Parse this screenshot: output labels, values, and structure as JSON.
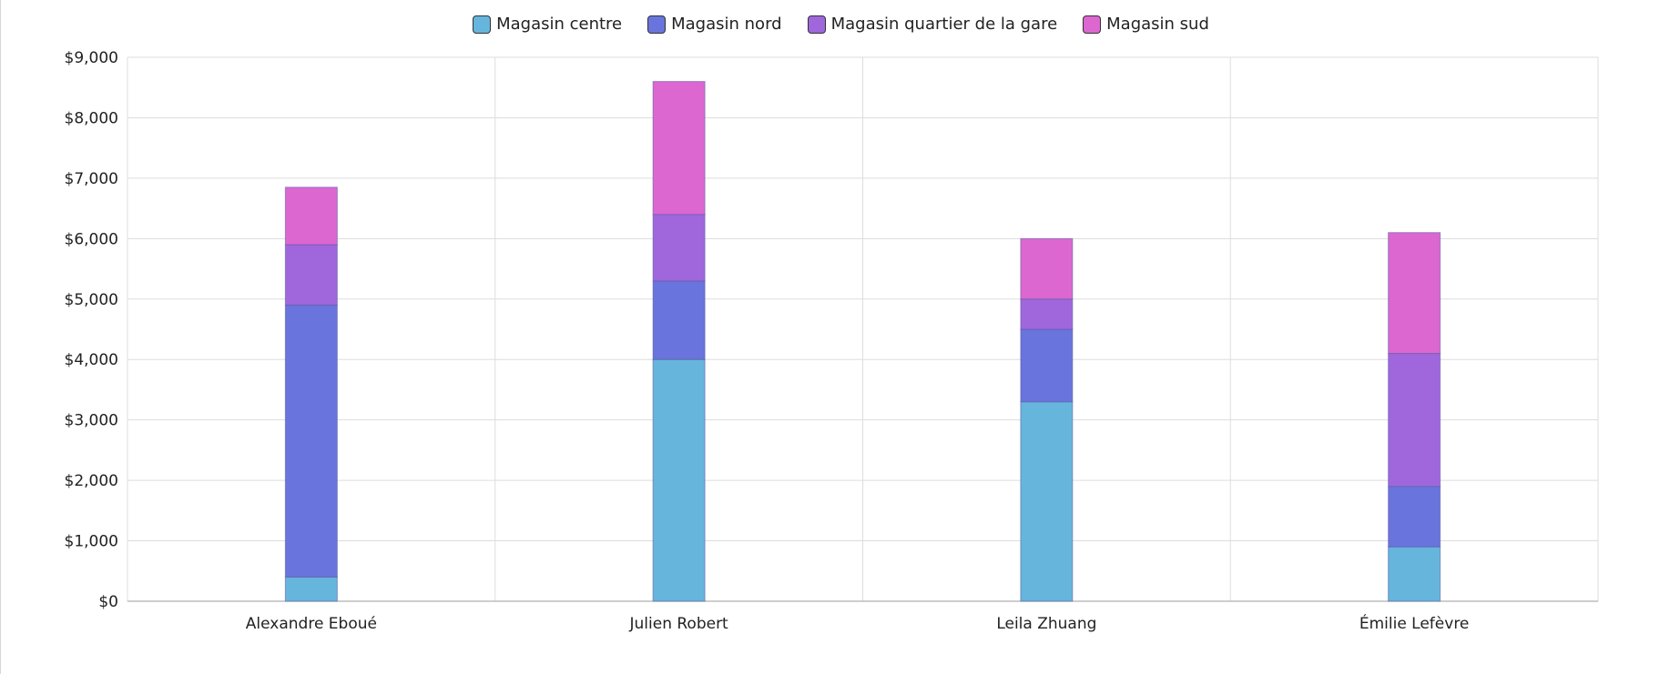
{
  "chart_data": {
    "type": "bar",
    "stacked": true,
    "categories": [
      "Alexandre Eboué",
      "Julien Robert",
      "Leila Zhuang",
      "Émilie Lefèvre"
    ],
    "series": [
      {
        "name": "Magasin centre",
        "color": "#66b5dc",
        "values": [
          400,
          4000,
          3300,
          900
        ]
      },
      {
        "name": "Magasin nord",
        "color": "#6974dc",
        "values": [
          4500,
          1300,
          1200,
          1000
        ]
      },
      {
        "name": "Magasin quartier de la gare",
        "color": "#a067dc",
        "values": [
          1000,
          1100,
          500,
          2200
        ]
      },
      {
        "name": "Magasin sud",
        "color": "#dc67d0",
        "values": [
          950,
          2200,
          1000,
          2000
        ]
      }
    ],
    "ylim": [
      0,
      9000
    ],
    "yticks": [
      "$0",
      "$1,000",
      "$2,000",
      "$3,000",
      "$4,000",
      "$5,000",
      "$6,000",
      "$7,000",
      "$8,000",
      "$9,000"
    ],
    "grid": true,
    "legend": "top-center"
  }
}
